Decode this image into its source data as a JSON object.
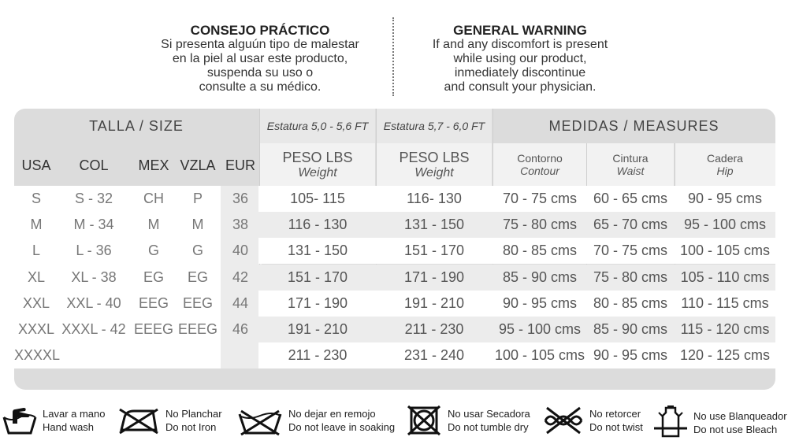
{
  "notes": {
    "es": {
      "title": "CONSEJO PRÁCTICO",
      "lines": [
        "Si presenta alguún tipo de malestar",
        "en la piel al usar este producto,",
        "suspenda su uso o",
        "consulte a su médico."
      ]
    },
    "en": {
      "title": "GENERAL WARNING",
      "lines": [
        "If and any discomfort is present",
        "while using our product,",
        "inmediately discontinue",
        "and consult your physician."
      ]
    }
  },
  "table": {
    "section_size": "TALLA / SIZE",
    "section_height1": "Estatura 5,0 - 5,6 FT",
    "section_height2": "Estatura 5,7 - 6,0 FT",
    "section_measures": "MEDIDAS / MEASURES",
    "weight1": {
      "l1": "PESO LBS",
      "l2": "Weight"
    },
    "weight2": {
      "l1": "PESO LBS",
      "l2": "Weight"
    },
    "contour": {
      "l1": "Contorno",
      "l2": "Contour"
    },
    "waist": {
      "l1": "Cintura",
      "l2": "Waist"
    },
    "hip": {
      "l1": "Cadera",
      "l2": "Hip"
    },
    "size_headers": [
      "USA",
      "COL",
      "MEX",
      "VZLA",
      "EUR"
    ],
    "rows": [
      {
        "usa": "S",
        "col": "S - 32",
        "mex": "CH",
        "vzla": "P",
        "eur": "36",
        "w1": "105- 115",
        "w2": "116- 130",
        "contour": "70 - 75 cms",
        "waist": "60 - 65 cms",
        "hip": "90 - 95 cms"
      },
      {
        "usa": "M",
        "col": "M - 34",
        "mex": "M",
        "vzla": "M",
        "eur": "38",
        "w1": "116 - 130",
        "w2": "131 - 150",
        "contour": "75 - 80 cms",
        "waist": "65 - 70 cms",
        "hip": "95 - 100 cms"
      },
      {
        "usa": "L",
        "col": "L - 36",
        "mex": "G",
        "vzla": "G",
        "eur": "40",
        "w1": "131 - 150",
        "w2": "151 - 170",
        "contour": "80 - 85 cms",
        "waist": "70 - 75 cms",
        "hip": "100 - 105 cms"
      },
      {
        "usa": "XL",
        "col": "XL - 38",
        "mex": "EG",
        "vzla": "EG",
        "eur": "42",
        "w1": "151 - 170",
        "w2": "171 - 190",
        "contour": "85 - 90 cms",
        "waist": "75 - 80 cms",
        "hip": "105 - 110 cms"
      },
      {
        "usa": "XXL",
        "col": "XXL - 40",
        "mex": "EEG",
        "vzla": "EEG",
        "eur": "44",
        "w1": "171 - 190",
        "w2": "191 - 210",
        "contour": "90 - 95 cms",
        "waist": "80 - 85 cms",
        "hip": "110 - 115 cms"
      },
      {
        "usa": "XXXL",
        "col": "XXXL - 42",
        "mex": "EEEG",
        "vzla": "EEEG",
        "eur": "46",
        "w1": "191 - 210",
        "w2": "211 - 230",
        "contour": "95 - 100 cms",
        "waist": "85 - 90 cms",
        "hip": "115 - 120 cms"
      },
      {
        "usa": "XXXXL",
        "col": "",
        "mex": "",
        "vzla": "",
        "eur": "",
        "w1": "211 - 230",
        "w2": "231 - 240",
        "contour": "100 - 105 cms",
        "waist": "90 - 95 cms",
        "hip": "120 - 125 cms"
      }
    ]
  },
  "care": [
    {
      "icon": "hand-wash-icon",
      "es": "Lavar a mano",
      "en": "Hand wash"
    },
    {
      "icon": "no-iron-icon",
      "es": "No Planchar",
      "en": "Do not Iron"
    },
    {
      "icon": "no-soak-icon",
      "es": "No dejar en remojo",
      "en": "Do not  leave in soaking"
    },
    {
      "icon": "no-tumble-dry-icon",
      "es": "No usar Secadora",
      "en": "Do not tumble dry"
    },
    {
      "icon": "no-wring-icon",
      "es": "No retorcer",
      "en": "Do not  twist"
    },
    {
      "icon": "no-bleach-icon",
      "es": "No use  Blanqueador",
      "en": "Do not use Bleach"
    }
  ]
}
